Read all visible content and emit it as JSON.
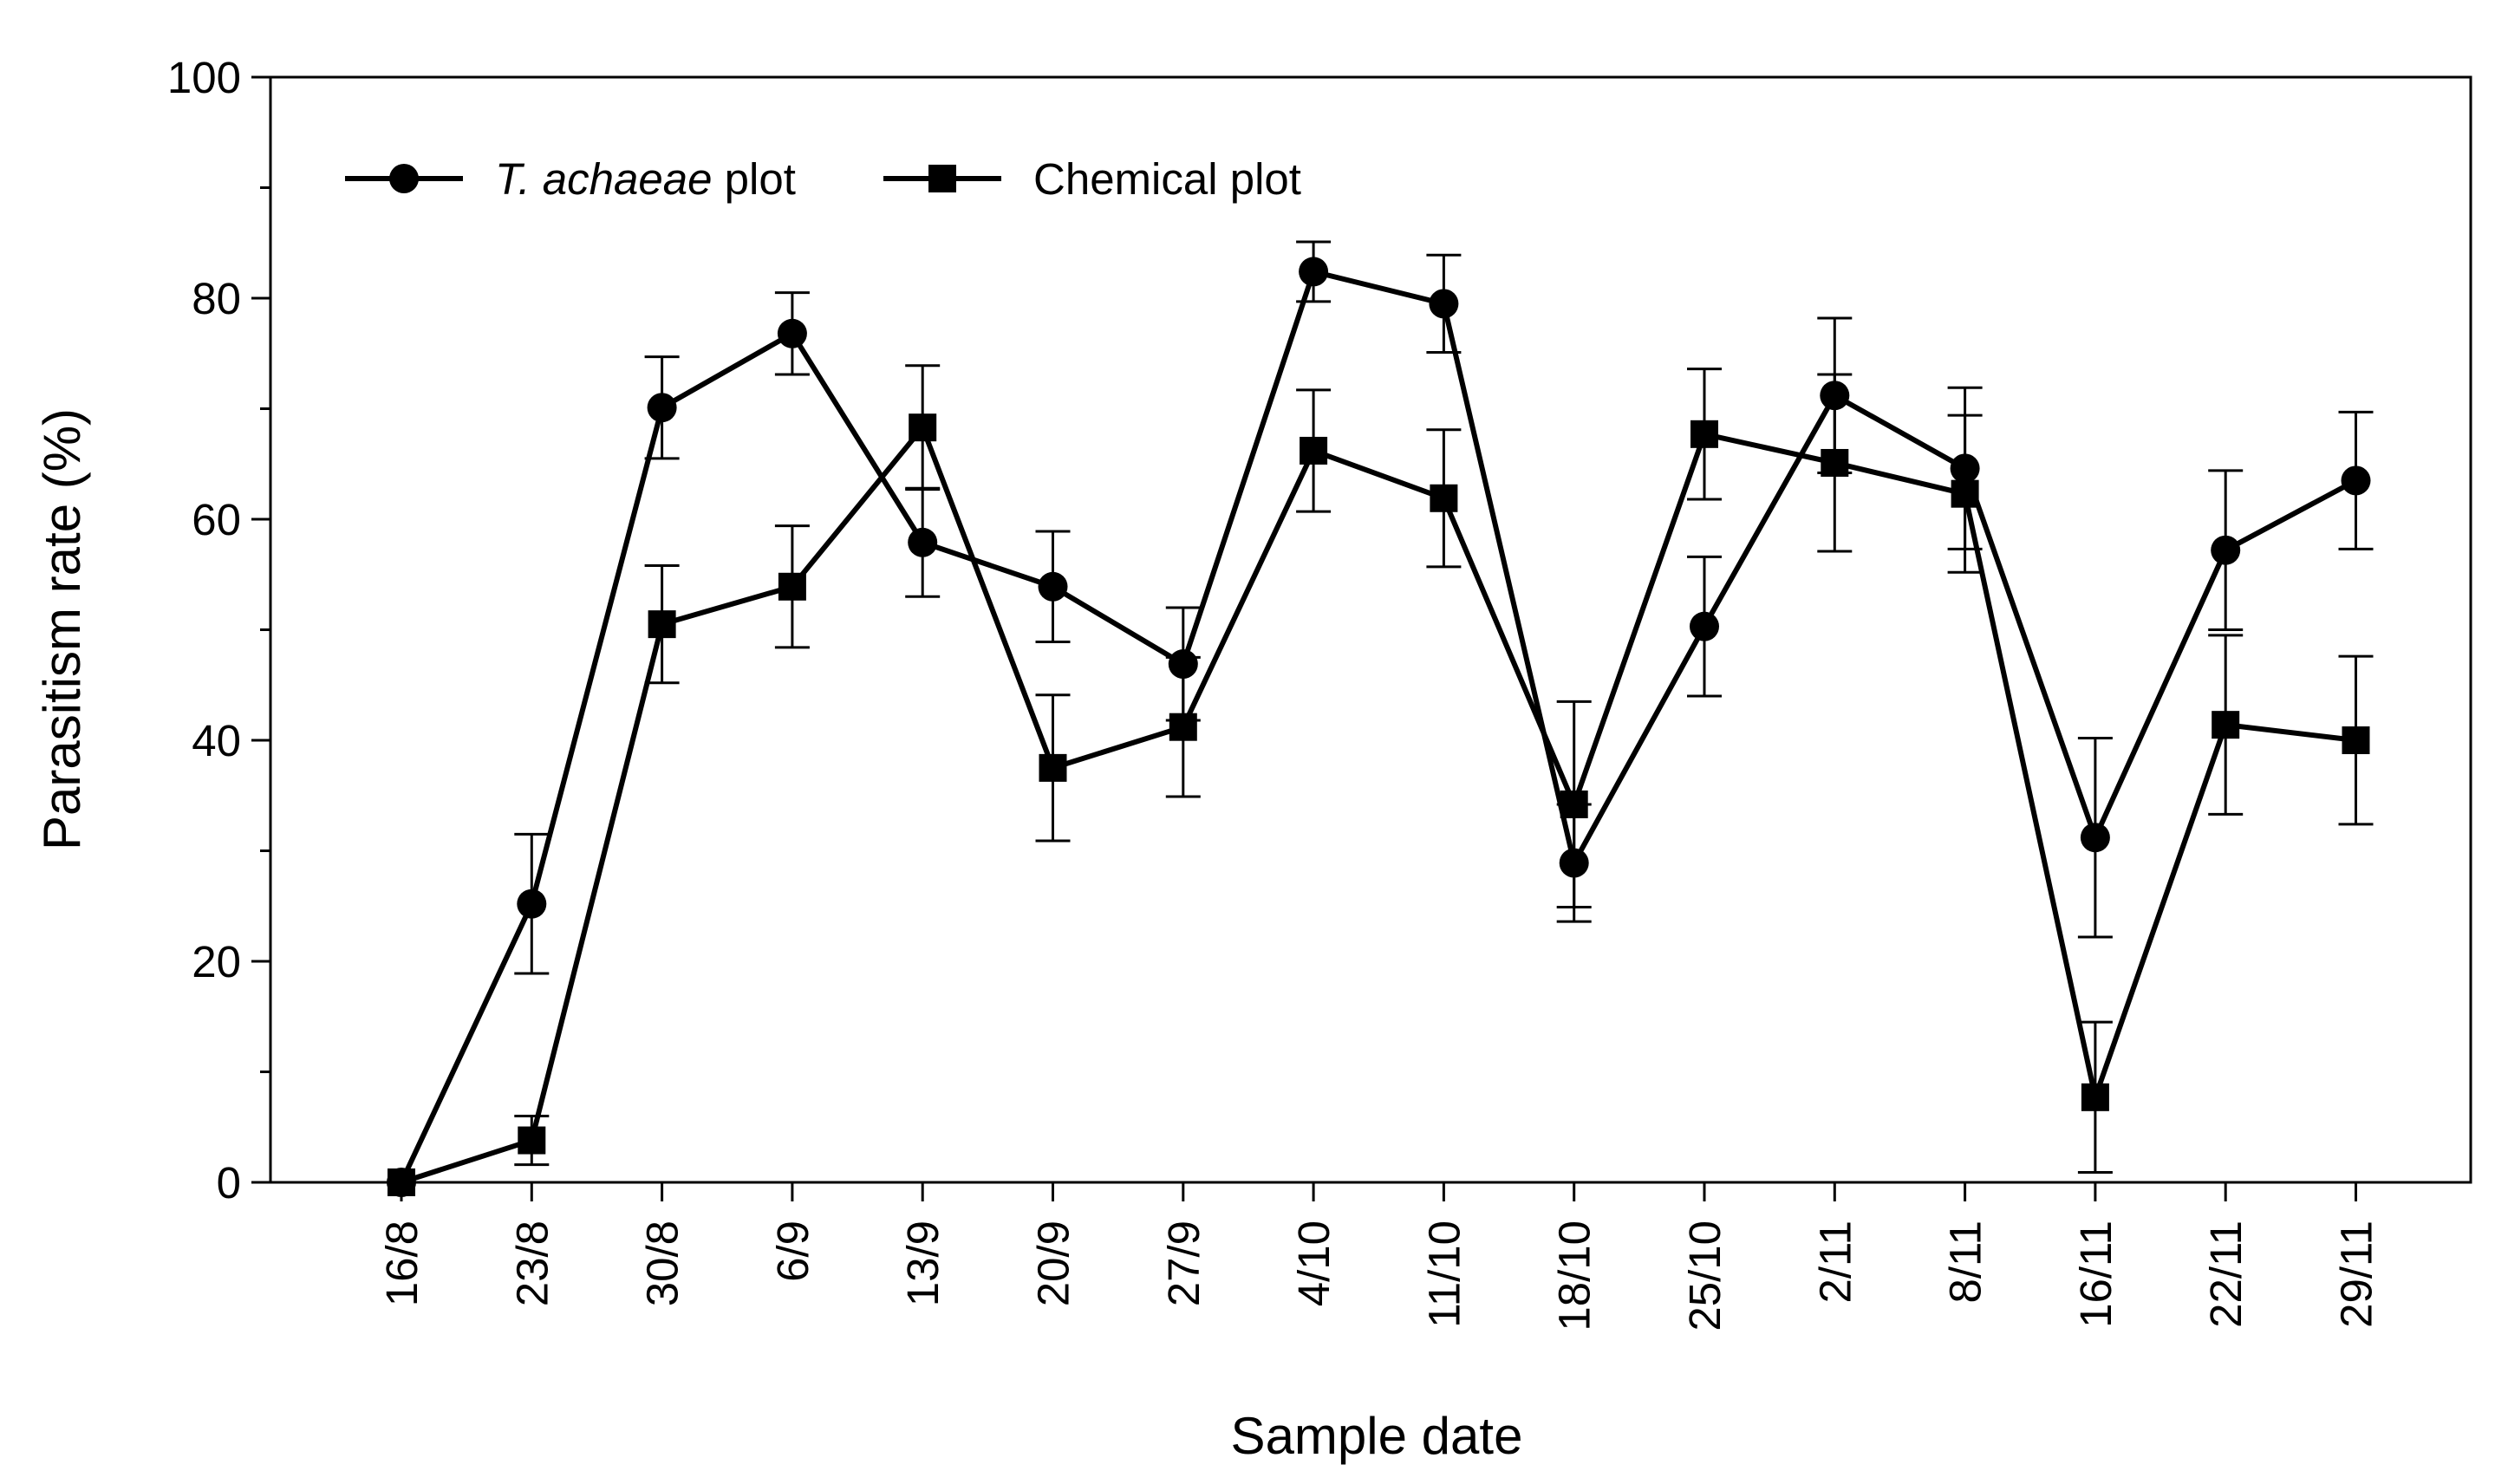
{
  "chart_data": {
    "type": "line",
    "title": "",
    "xlabel": "Sample date",
    "ylabel": "Parasitism rate (%)",
    "ylim": [
      0,
      100
    ],
    "y_ticks": [
      "0",
      "20",
      "40",
      "60",
      "80",
      "100"
    ],
    "y_minor_ticks": [
      10,
      30,
      50,
      70,
      90
    ],
    "categories": [
      "16/8",
      "23/8",
      "30/8",
      "6/9",
      "13/9",
      "20/9",
      "27/9",
      "4/10",
      "11/10",
      "18/10",
      "25/10",
      "2/11",
      "8/11",
      "16/11",
      "22/11",
      "29/11"
    ],
    "grid": false,
    "legend_position": "top-left",
    "series": [
      {
        "name_italic": "T. achaeae",
        "name_suffix": " plot",
        "marker": "circle",
        "color": "#000000",
        "values": [
          0,
          25.2,
          70.1,
          76.8,
          57.9,
          53.9,
          46.9,
          82.4,
          79.5,
          28.9,
          50.3,
          71.2,
          64.6,
          31.2,
          57.2,
          63.5
        ],
        "errors": [
          0,
          6.3,
          4.6,
          3.7,
          4.9,
          5.0,
          5.1,
          2.7,
          4.4,
          5.3,
          6.3,
          7.0,
          7.3,
          9.0,
          7.2,
          6.2
        ]
      },
      {
        "name": "Chemical plot",
        "marker": "square",
        "color": "#000000",
        "values": [
          0,
          3.8,
          50.5,
          53.9,
          68.3,
          37.5,
          41.2,
          66.2,
          61.9,
          34.2,
          67.7,
          65.1,
          62.3,
          7.7,
          41.4,
          40.0
        ],
        "errors": [
          0,
          2.2,
          5.3,
          5.5,
          5.6,
          6.6,
          6.3,
          5.5,
          6.2,
          9.3,
          5.9,
          8.0,
          7.1,
          6.8,
          8.1,
          7.6
        ]
      }
    ]
  }
}
